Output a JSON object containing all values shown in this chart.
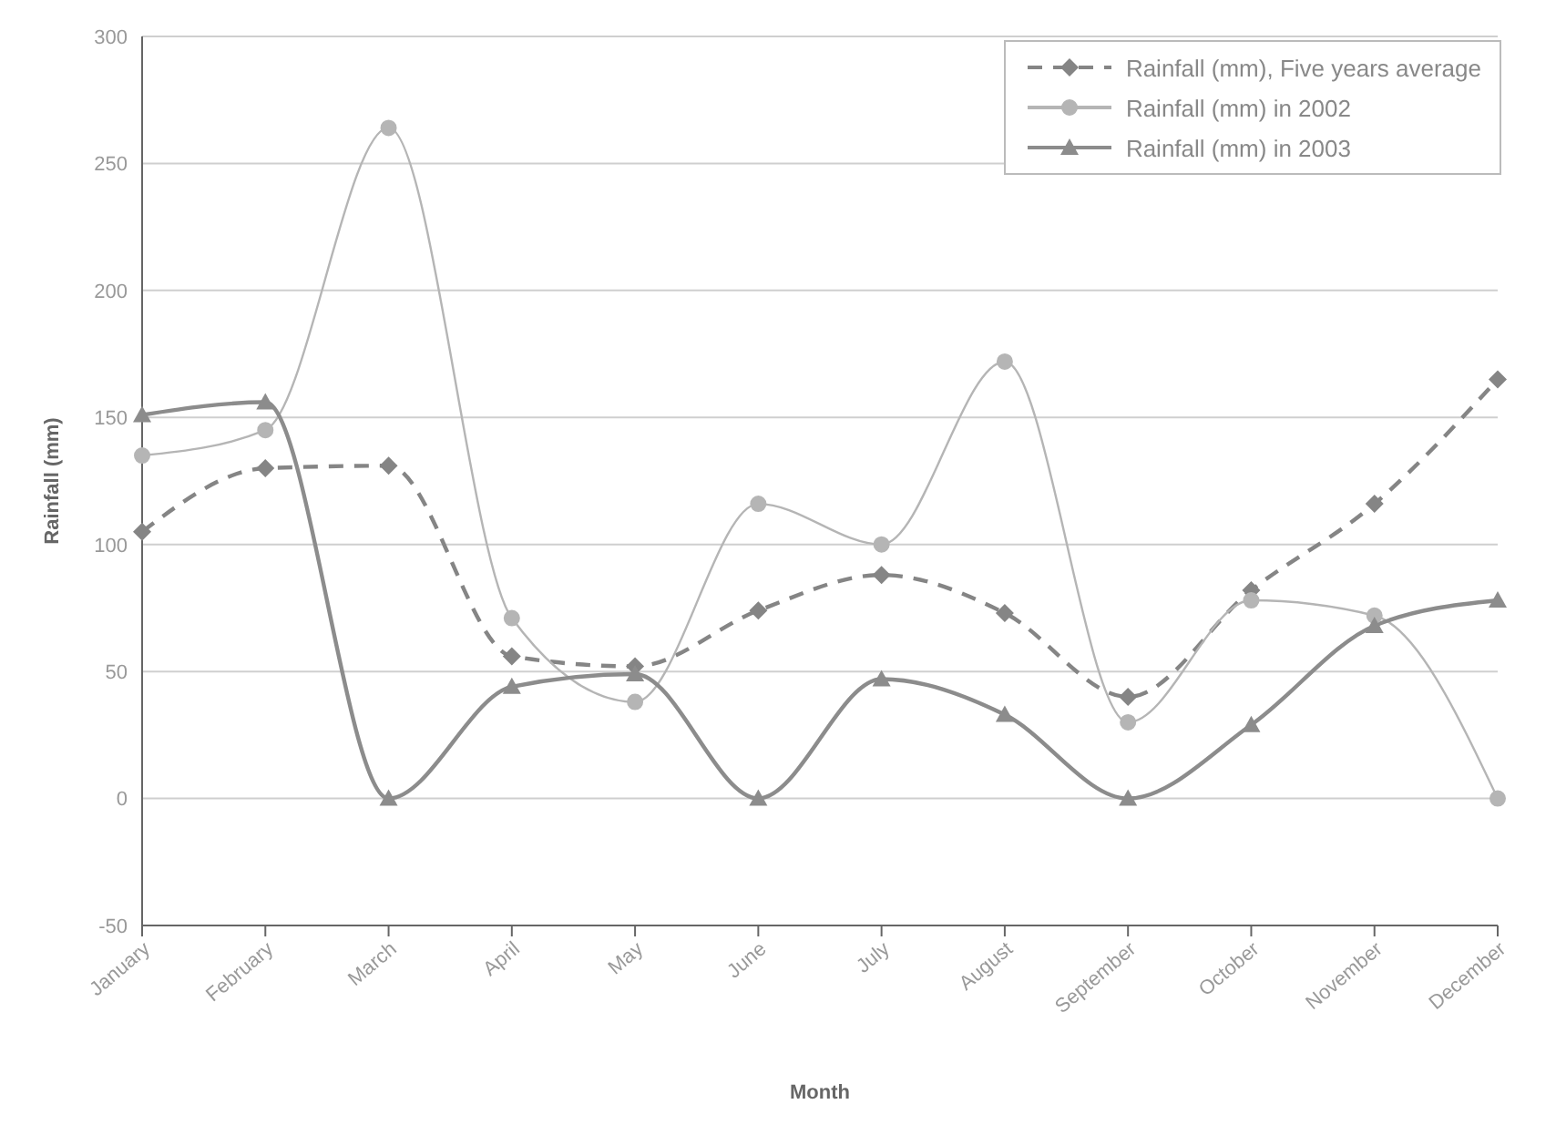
{
  "chart_data": {
    "type": "line",
    "xlabel": "Month",
    "ylabel": "Rainfall (mm)",
    "categories": [
      "January",
      "February",
      "March",
      "April",
      "May",
      "June",
      "July",
      "August",
      "September",
      "October",
      "November",
      "December"
    ],
    "series": [
      {
        "name": "Rainfall (mm), Five years average",
        "color": "#858585",
        "marker": "diamond",
        "line_style": "dashed",
        "values": [
          105,
          130,
          131,
          56,
          52,
          74,
          88,
          73,
          40,
          82,
          116,
          165
        ]
      },
      {
        "name": "Rainfall (mm) in 2002",
        "color": "#b5b5b5",
        "marker": "circle",
        "line_style": "solid",
        "values": [
          135,
          145,
          264,
          71,
          38,
          116,
          100,
          172,
          30,
          78,
          72,
          0
        ]
      },
      {
        "name": "Rainfall (mm) in 2003",
        "color": "#8c8c8c",
        "marker": "triangle",
        "line_style": "solid",
        "values": [
          151,
          156,
          0,
          44,
          49,
          0,
          47,
          33,
          0,
          29,
          68,
          78
        ]
      }
    ],
    "ylim": [
      -50,
      300
    ],
    "yticks": [
      -50,
      0,
      50,
      100,
      150,
      200,
      250,
      300
    ],
    "grid": "y",
    "legend": "top right"
  }
}
